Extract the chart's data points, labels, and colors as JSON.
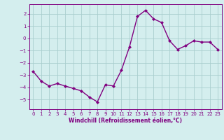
{
  "x": [
    0,
    1,
    2,
    3,
    4,
    5,
    6,
    7,
    8,
    9,
    10,
    11,
    12,
    13,
    14,
    15,
    16,
    17,
    18,
    19,
    20,
    21,
    22,
    23
  ],
  "y": [
    -2.7,
    -3.5,
    -3.9,
    -3.7,
    -3.9,
    -4.1,
    -4.3,
    -4.8,
    -5.2,
    -3.8,
    -3.9,
    -2.6,
    -0.7,
    1.8,
    2.3,
    1.6,
    1.3,
    -0.2,
    -0.9,
    -0.6,
    -0.2,
    -0.3,
    -0.3,
    -0.9
  ],
  "line_color": "#800080",
  "marker": "D",
  "marker_size": 2.0,
  "bg_color": "#d4eeee",
  "grid_color": "#aacece",
  "tick_color": "#800080",
  "label_color": "#800080",
  "xlabel": "Windchill (Refroidissement éolien,°C)",
  "ylim": [
    -5.8,
    2.8
  ],
  "xlim": [
    -0.5,
    23.5
  ],
  "yticks": [
    -5,
    -4,
    -3,
    -2,
    -1,
    0,
    1,
    2
  ],
  "xticks": [
    0,
    1,
    2,
    3,
    4,
    5,
    6,
    7,
    8,
    9,
    10,
    11,
    12,
    13,
    14,
    15,
    16,
    17,
    18,
    19,
    20,
    21,
    22,
    23
  ],
  "line_width": 1.0,
  "fig_width": 3.2,
  "fig_height": 2.0,
  "dpi": 100,
  "tick_fontsize": 5.0,
  "xlabel_fontsize": 5.5
}
